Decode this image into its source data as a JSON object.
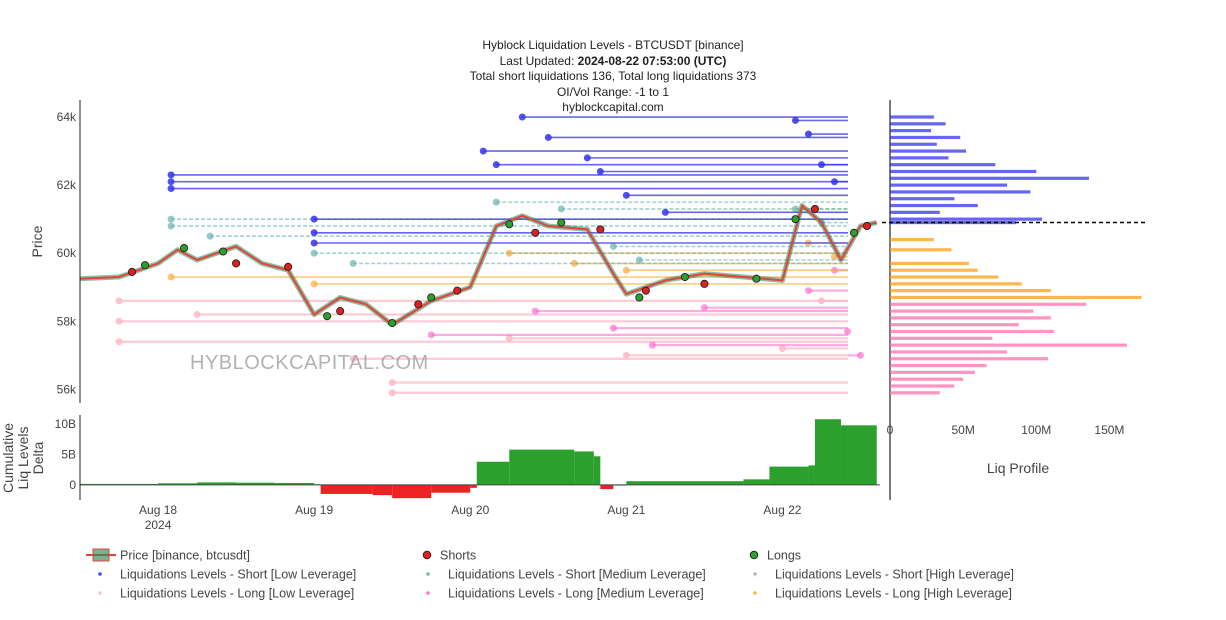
{
  "header": {
    "title": "Hyblock Liquidation Levels - BTCUSDT [binance]",
    "updated_prefix": "Last Updated: ",
    "updated_value": "2024-08-22 07:53:00 (UTC)",
    "totals": "Total short liquidations 136, Total long liquidations 373",
    "range": "OI/Vol Range: -1 to 1",
    "site": "hyblockcapital.com"
  },
  "watermark": "HYBLOCKCAPITAL.COM",
  "colors": {
    "short_low": "#3333ee",
    "short_medium": "#66b3b0",
    "short_high": "#b0b0b0",
    "long_low": "#ffb8c8",
    "long_medium": "#ff66cc",
    "long_high": "#ffaa33",
    "price_line": "#e0453a",
    "price_fill": "#2e8b57",
    "shorts_marker": "#e02020",
    "longs_marker": "#2ca02c",
    "delta_positive": "#2ca02c",
    "delta_negative": "#ee2222",
    "profile_short": "#3333ee",
    "profile_long": "#ff66aa",
    "profile_long_high": "#ff9900",
    "current_price_line": "#000000"
  },
  "chart_data": [
    {
      "type": "line",
      "name": "main-liquidation-chart",
      "ylabel": "Price",
      "ylim": [
        55600,
        64500
      ],
      "y_ticks": [
        56000,
        58000,
        60000,
        62000,
        64000
      ],
      "y_tick_labels": [
        "56k",
        "58k",
        "60k",
        "62k",
        "64k"
      ],
      "x_range": [
        "2024-08-17 12:00",
        "2024-08-22 15:00"
      ],
      "x_ticks": [
        "2024-08-18",
        "2024-08-19",
        "2024-08-20",
        "2024-08-21",
        "2024-08-22"
      ],
      "x_tick_labels": [
        "Aug 18",
        "Aug 19",
        "Aug 20",
        "Aug 21",
        "Aug 22"
      ],
      "x_tick_sublabel": "2024",
      "price_series": {
        "name": "Price [binance, btcusdt]",
        "points": [
          [
            "2024-08-17 12:00",
            59250
          ],
          [
            "2024-08-17 18:00",
            59300
          ],
          [
            "2024-08-18 00:00",
            59700
          ],
          [
            "2024-08-18 03:00",
            60100
          ],
          [
            "2024-08-18 06:00",
            59800
          ],
          [
            "2024-08-18 12:00",
            60200
          ],
          [
            "2024-08-18 16:00",
            59700
          ],
          [
            "2024-08-18 20:00",
            59500
          ],
          [
            "2024-08-19 00:00",
            58200
          ],
          [
            "2024-08-19 04:00",
            58700
          ],
          [
            "2024-08-19 08:00",
            58500
          ],
          [
            "2024-08-19 12:00",
            57900
          ],
          [
            "2024-08-19 18:00",
            58600
          ],
          [
            "2024-08-20 00:00",
            59000
          ],
          [
            "2024-08-20 04:00",
            60800
          ],
          [
            "2024-08-20 08:00",
            61100
          ],
          [
            "2024-08-20 12:00",
            60800
          ],
          [
            "2024-08-20 18:00",
            60700
          ],
          [
            "2024-08-20 22:00",
            59400
          ],
          [
            "2024-08-21 00:00",
            58800
          ],
          [
            "2024-08-21 06:00",
            59200
          ],
          [
            "2024-08-21 12:00",
            59400
          ],
          [
            "2024-08-21 18:00",
            59300
          ],
          [
            "2024-08-22 00:00",
            59200
          ],
          [
            "2024-08-22 03:00",
            61400
          ],
          [
            "2024-08-22 06:00",
            60900
          ],
          [
            "2024-08-22 09:00",
            59800
          ],
          [
            "2024-08-22 12:00",
            60800
          ],
          [
            "2024-08-22 14:30",
            60900
          ]
        ]
      },
      "shorts_marker_points": [
        [
          "2024-08-17 20:00",
          59450
        ],
        [
          "2024-08-18 12:00",
          59700
        ],
        [
          "2024-08-18 20:00",
          59600
        ],
        [
          "2024-08-19 04:00",
          58300
        ],
        [
          "2024-08-19 16:00",
          58500
        ],
        [
          "2024-08-19 22:00",
          58900
        ],
        [
          "2024-08-20 10:00",
          60600
        ],
        [
          "2024-08-20 20:00",
          60700
        ],
        [
          "2024-08-21 03:00",
          58900
        ],
        [
          "2024-08-21 12:00",
          59100
        ],
        [
          "2024-08-22 05:00",
          61300
        ],
        [
          "2024-08-22 13:00",
          60800
        ]
      ],
      "longs_marker_points": [
        [
          "2024-08-17 22:00",
          59650
        ],
        [
          "2024-08-18 04:00",
          60150
        ],
        [
          "2024-08-18 10:00",
          60050
        ],
        [
          "2024-08-19 02:00",
          58150
        ],
        [
          "2024-08-19 12:00",
          57950
        ],
        [
          "2024-08-19 18:00",
          58700
        ],
        [
          "2024-08-20 06:00",
          60850
        ],
        [
          "2024-08-20 14:00",
          60900
        ],
        [
          "2024-08-21 02:00",
          58700
        ],
        [
          "2024-08-21 09:00",
          59300
        ],
        [
          "2024-08-21 20:00",
          59250
        ],
        [
          "2024-08-22 02:00",
          61000
        ],
        [
          "2024-08-22 11:00",
          60600
        ]
      ],
      "liquidation_levels": {
        "short_low": [
          [
            "2024-08-18 02:00",
            62300
          ],
          [
            "2024-08-18 02:00",
            62100
          ],
          [
            "2024-08-18 02:00",
            61900
          ],
          [
            "2024-08-19 00:00",
            61000
          ],
          [
            "2024-08-19 00:00",
            60600
          ],
          [
            "2024-08-19 00:00",
            60300
          ],
          [
            "2024-08-20 02:00",
            63000
          ],
          [
            "2024-08-20 04:00",
            62600
          ],
          [
            "2024-08-20 08:00",
            64000
          ],
          [
            "2024-08-20 12:00",
            63400
          ],
          [
            "2024-08-20 18:00",
            62800
          ],
          [
            "2024-08-20 20:00",
            62400
          ],
          [
            "2024-08-21 00:00",
            61700
          ],
          [
            "2024-08-21 06:00",
            61200
          ],
          [
            "2024-08-22 02:00",
            63900
          ],
          [
            "2024-08-22 04:00",
            63500
          ],
          [
            "2024-08-22 06:00",
            62600
          ],
          [
            "2024-08-22 08:00",
            62100
          ]
        ],
        "short_medium": [
          [
            "2024-08-18 02:00",
            61000
          ],
          [
            "2024-08-18 02:00",
            60800
          ],
          [
            "2024-08-18 08:00",
            60500
          ],
          [
            "2024-08-19 00:00",
            60000
          ],
          [
            "2024-08-19 06:00",
            59700
          ],
          [
            "2024-08-20 04:00",
            61500
          ],
          [
            "2024-08-20 14:00",
            61300
          ],
          [
            "2024-08-20 22:00",
            60200
          ],
          [
            "2024-08-21 02:00",
            59800
          ],
          [
            "2024-08-22 02:00",
            61300
          ],
          [
            "2024-08-22 06:00",
            60900
          ]
        ],
        "long_low": [
          [
            "2024-08-17 18:00",
            58600
          ],
          [
            "2024-08-17 18:00",
            58000
          ],
          [
            "2024-08-17 18:00",
            57400
          ],
          [
            "2024-08-18 06:00",
            58200
          ],
          [
            "2024-08-19 06:00",
            56900
          ],
          [
            "2024-08-19 12:00",
            56200
          ],
          [
            "2024-08-19 12:00",
            55900
          ],
          [
            "2024-08-20 06:00",
            57500
          ],
          [
            "2024-08-21 00:00",
            57000
          ],
          [
            "2024-08-22 00:00",
            57200
          ],
          [
            "2024-08-22 06:00",
            58600
          ]
        ],
        "long_medium": [
          [
            "2024-08-19 18:00",
            57600
          ],
          [
            "2024-08-20 10:00",
            58300
          ],
          [
            "2024-08-20 22:00",
            57800
          ],
          [
            "2024-08-21 04:00",
            57300
          ],
          [
            "2024-08-21 12:00",
            58400
          ],
          [
            "2024-08-22 04:00",
            58900
          ],
          [
            "2024-08-22 08:00",
            59500
          ],
          [
            "2024-08-22 10:00",
            57700
          ],
          [
            "2024-08-22 12:00",
            57000
          ]
        ],
        "long_high": [
          [
            "2024-08-18 02:00",
            59300
          ],
          [
            "2024-08-19 00:00",
            59100
          ],
          [
            "2024-08-20 06:00",
            60000
          ],
          [
            "2024-08-20 16:00",
            59700
          ],
          [
            "2024-08-21 00:00",
            59500
          ],
          [
            "2024-08-22 04:00",
            60300
          ],
          [
            "2024-08-22 08:00",
            59900
          ]
        ]
      }
    },
    {
      "type": "area",
      "name": "cumulative-delta",
      "ylabel_lines": [
        "Cumulative",
        "Liq Levels",
        "Delta"
      ],
      "ylim": [
        -2500000000,
        11500000000
      ],
      "y_ticks": [
        0,
        5000000000,
        10000000000
      ],
      "y_tick_labels": [
        "0",
        "5B",
        "10B"
      ],
      "points": [
        [
          "2024-08-17 12:00",
          150000000
        ],
        [
          "2024-08-18 00:00",
          250000000
        ],
        [
          "2024-08-18 06:00",
          400000000
        ],
        [
          "2024-08-18 12:00",
          350000000
        ],
        [
          "2024-08-18 18:00",
          300000000
        ],
        [
          "2024-08-19 00:00",
          100000000
        ],
        [
          "2024-08-19 01:00",
          -1500000000
        ],
        [
          "2024-08-19 09:00",
          -1700000000
        ],
        [
          "2024-08-19 12:00",
          -2200000000
        ],
        [
          "2024-08-19 18:00",
          -1300000000
        ],
        [
          "2024-08-20 00:00",
          -500000000
        ],
        [
          "2024-08-20 01:00",
          3800000000
        ],
        [
          "2024-08-20 06:00",
          5800000000
        ],
        [
          "2024-08-20 16:00",
          5500000000
        ],
        [
          "2024-08-20 19:00",
          4700000000
        ],
        [
          "2024-08-20 20:00",
          -700000000
        ],
        [
          "2024-08-20 22:00",
          0
        ],
        [
          "2024-08-21 00:00",
          600000000
        ],
        [
          "2024-08-21 18:00",
          900000000
        ],
        [
          "2024-08-21 22:00",
          3000000000
        ],
        [
          "2024-08-22 04:00",
          3200000000
        ],
        [
          "2024-08-22 05:00",
          10800000000
        ],
        [
          "2024-08-22 09:00",
          9800000000
        ],
        [
          "2024-08-22 14:30",
          9300000000
        ]
      ]
    },
    {
      "type": "bar",
      "name": "liq-profile",
      "orientation": "horizontal",
      "xlabel": "Liq Profile",
      "xlim": [
        0,
        175000000
      ],
      "x_ticks": [
        0,
        50000000,
        100000000,
        150000000
      ],
      "x_tick_labels": [
        "0",
        "50M",
        "100M",
        "150M"
      ],
      "current_price": 60900,
      "short_levels": [
        [
          64000,
          30000000
        ],
        [
          63800,
          38000000
        ],
        [
          63600,
          28000000
        ],
        [
          63400,
          48000000
        ],
        [
          63200,
          32000000
        ],
        [
          63000,
          52000000
        ],
        [
          62800,
          40000000
        ],
        [
          62600,
          72000000
        ],
        [
          62400,
          100000000
        ],
        [
          62200,
          136000000
        ],
        [
          62000,
          80000000
        ],
        [
          61800,
          96000000
        ],
        [
          61600,
          44000000
        ],
        [
          61400,
          60000000
        ],
        [
          61200,
          34000000
        ],
        [
          61000,
          104000000
        ],
        [
          60900,
          86000000
        ]
      ],
      "long_levels": [
        [
          60400,
          30000000
        ],
        [
          60100,
          42000000
        ],
        [
          59700,
          54000000
        ],
        [
          59500,
          60000000
        ],
        [
          59300,
          74000000
        ],
        [
          59100,
          90000000
        ],
        [
          58900,
          110000000
        ],
        [
          58700,
          172000000
        ],
        [
          58500,
          134000000
        ],
        [
          58300,
          98000000
        ],
        [
          58100,
          110000000
        ],
        [
          57900,
          88000000
        ],
        [
          57700,
          112000000
        ],
        [
          57500,
          70000000
        ],
        [
          57300,
          162000000
        ],
        [
          57100,
          80000000
        ],
        [
          56900,
          108000000
        ],
        [
          56700,
          66000000
        ],
        [
          56500,
          58000000
        ],
        [
          56300,
          50000000
        ],
        [
          56100,
          44000000
        ],
        [
          55900,
          34000000
        ]
      ]
    }
  ],
  "legend": [
    {
      "label": "Price [binance, btcusdt]",
      "marker": "price"
    },
    {
      "label": "Shorts",
      "marker": "shorts"
    },
    {
      "label": "Longs",
      "marker": "longs"
    },
    {
      "label": "Liquidations Levels - Short [Low Leverage]",
      "marker": "short_low"
    },
    {
      "label": "Liquidations Levels - Short [Medium Leverage]",
      "marker": "short_medium"
    },
    {
      "label": "Liquidations Levels - Short [High Leverage]",
      "marker": "short_high"
    },
    {
      "label": "Liquidations Levels - Long [Low Leverage]",
      "marker": "long_low"
    },
    {
      "label": "Liquidations Levels - Long [Medium Leverage]",
      "marker": "long_medium"
    },
    {
      "label": "Liquidations Levels - Long [High Leverage]",
      "marker": "long_high"
    }
  ]
}
